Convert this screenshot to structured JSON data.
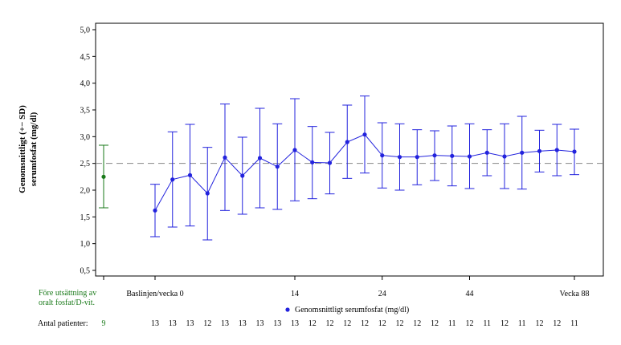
{
  "chart_data": {
    "type": "line",
    "ylabel_line1": "Genomsnittligt (+− SD)",
    "ylabel_line2": "serumfosfat (mg/dl)",
    "ylim": [
      0.5,
      5.0
    ],
    "yticks": [
      "0,5",
      "1,0",
      "1,5",
      "2,0",
      "2,5",
      "3,0",
      "3,5",
      "4,0",
      "4,5",
      "5,0"
    ],
    "reference_line": 2.5,
    "grid": false,
    "legend_position": "bottom-center",
    "colors": {
      "series": "#2222dd",
      "pre_treatment": "#1a7a1a",
      "reference": "#888888"
    },
    "pre_treatment": {
      "label_line1": "Före utsättning av",
      "label_line2": "oralt fosfat/D-vit.",
      "mean": 2.25,
      "lower": 1.67,
      "upper": 2.84,
      "patients": "9"
    },
    "x_tick_labels": [
      {
        "index": 0,
        "label": "Baslinjen/vecka 0"
      },
      {
        "index": 8,
        "label": "14"
      },
      {
        "index": 13,
        "label": "24"
      },
      {
        "index": 18,
        "label": "44"
      },
      {
        "index": 24,
        "label": "Vecka 88"
      }
    ],
    "series": [
      {
        "name": "Genomsnittligt serumfosfat (mg/dl)",
        "mean": [
          1.62,
          2.2,
          2.28,
          1.94,
          2.61,
          2.27,
          2.6,
          2.44,
          2.75,
          2.52,
          2.51,
          2.9,
          3.04,
          2.65,
          2.62,
          2.62,
          2.65,
          2.64,
          2.63,
          2.7,
          2.63,
          2.7,
          2.73,
          2.75,
          2.72
        ],
        "upper": [
          2.11,
          3.09,
          3.23,
          2.8,
          3.61,
          2.99,
          3.53,
          3.24,
          3.71,
          3.19,
          3.08,
          3.59,
          3.76,
          3.26,
          3.24,
          3.13,
          3.11,
          3.2,
          3.24,
          3.13,
          3.24,
          3.38,
          3.12,
          3.23,
          3.14
        ],
        "lower": [
          1.13,
          1.31,
          1.33,
          1.07,
          1.62,
          1.55,
          1.67,
          1.64,
          1.8,
          1.84,
          1.93,
          2.22,
          2.32,
          2.04,
          2.0,
          2.1,
          2.18,
          2.08,
          2.03,
          2.27,
          2.03,
          2.02,
          2.34,
          2.27,
          2.29
        ],
        "patients": [
          "13",
          "13",
          "13",
          "12",
          "13",
          "13",
          "13",
          "13",
          "13",
          "12",
          "12",
          "12",
          "12",
          "12",
          "12",
          "12",
          "12",
          "11",
          "12",
          "11",
          "12",
          "11",
          "12",
          "12",
          "11"
        ]
      }
    ],
    "patients_label": "Antal patienter:"
  }
}
